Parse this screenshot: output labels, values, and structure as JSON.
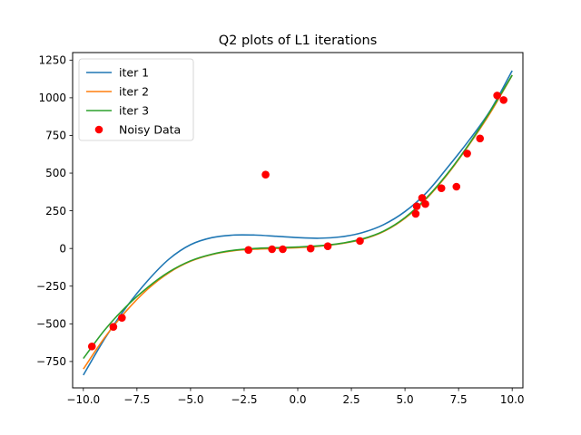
{
  "chart_data": {
    "type": "line",
    "title": "Q2 plots of L1 iterations",
    "xlabel": "",
    "ylabel": "",
    "xlim": [
      -10.5,
      10.5
    ],
    "ylim": [
      -925,
      1300
    ],
    "xticks": [
      -10.0,
      -7.5,
      -5.0,
      -2.5,
      0.0,
      2.5,
      5.0,
      7.5,
      10.0
    ],
    "xtick_labels": [
      "−10.0",
      "−7.5",
      "−5.0",
      "−2.5",
      "0.0",
      "2.5",
      "5.0",
      "7.5",
      "10.0"
    ],
    "yticks": [
      -750,
      -500,
      -250,
      0,
      250,
      500,
      750,
      1000,
      1250
    ],
    "ytick_labels": [
      "−750",
      "−500",
      "−250",
      "0",
      "250",
      "500",
      "750",
      "1000",
      "1250"
    ],
    "grid": false,
    "legend_position": "top-left",
    "series": [
      {
        "name": "iter 1",
        "color": "#1f77b4",
        "kind": "line",
        "x": [
          -10,
          -9,
          -8,
          -7,
          -6,
          -5,
          -4,
          -3,
          -2,
          -1,
          0,
          1,
          2,
          3,
          4,
          5,
          6,
          7,
          8,
          9,
          10
        ],
        "y": [
          -840,
          -598,
          -390,
          -214,
          -70,
          25,
          72,
          89,
          89,
          81,
          72,
          68,
          77,
          105,
          158,
          245,
          370,
          540,
          720,
          920,
          1180
        ]
      },
      {
        "name": "iter 2",
        "color": "#ff7f0e",
        "kind": "line",
        "x": [
          -10,
          -9,
          -8,
          -7,
          -6,
          -5,
          -4,
          -3,
          -2,
          -1,
          0,
          1,
          2,
          3,
          4,
          5,
          6,
          7,
          8,
          9,
          10
        ],
        "y": [
          -800,
          -590,
          -415,
          -270,
          -160,
          -85,
          -40,
          -15,
          -5,
          0,
          5,
          15,
          32,
          60,
          112,
          200,
          330,
          495,
          690,
          905,
          1150
        ]
      },
      {
        "name": "iter 3",
        "color": "#2ca02c",
        "kind": "line",
        "x": [
          -10,
          -9,
          -8,
          -7,
          -6,
          -5,
          -4,
          -3,
          -2,
          -1,
          0,
          1,
          2,
          3,
          4,
          5,
          6,
          7,
          8,
          9,
          10
        ],
        "y": [
          -730,
          -540,
          -385,
          -258,
          -155,
          -82,
          -38,
          -12,
          0,
          5,
          10,
          18,
          34,
          63,
          115,
          205,
          335,
          500,
          695,
          915,
          1150
        ]
      },
      {
        "name": "Noisy Data",
        "color": "#ff0000",
        "kind": "scatter",
        "x": [
          -9.6,
          -8.6,
          -8.2,
          -2.3,
          -1.5,
          -1.2,
          -0.7,
          0.6,
          1.4,
          2.9,
          5.5,
          5.55,
          5.8,
          5.95,
          6.7,
          7.4,
          7.9,
          8.5,
          9.3,
          9.6
        ],
        "y": [
          -650,
          -520,
          -460,
          -10,
          490,
          -5,
          -5,
          0,
          15,
          50,
          230,
          280,
          335,
          295,
          400,
          410,
          630,
          730,
          1015,
          985
        ]
      }
    ]
  }
}
